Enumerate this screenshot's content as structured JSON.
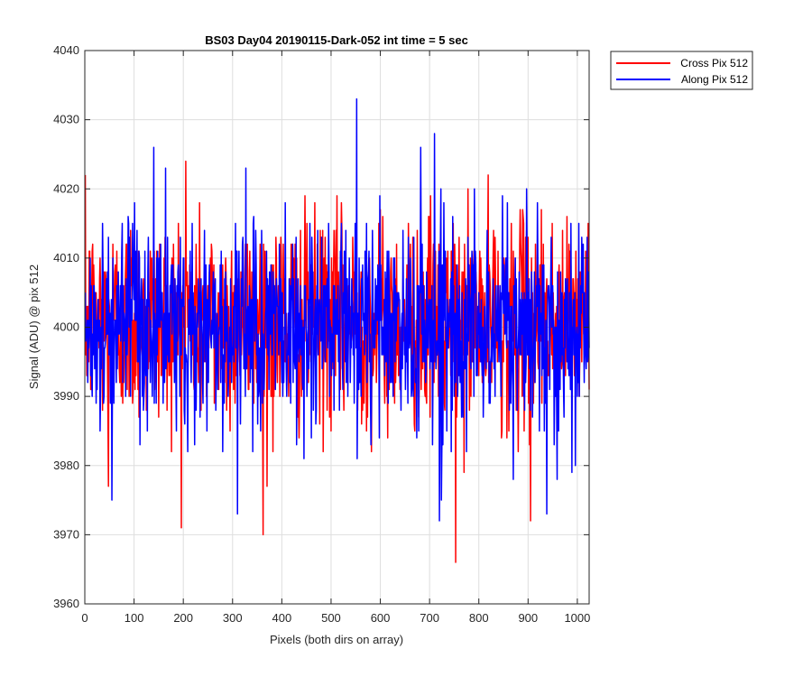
{
  "chart_data": {
    "type": "line",
    "title": "BS03 Day04 20190115-Dark-052 int time = 5 sec",
    "xlabel": "Pixels (both dirs on array)",
    "ylabel": "Signal (ADU) @ pix 512",
    "xlim": [
      0,
      1024
    ],
    "ylim": [
      3960,
      4040
    ],
    "x_ticks": [
      0,
      100,
      200,
      300,
      400,
      500,
      600,
      700,
      800,
      900,
      1000
    ],
    "y_ticks": [
      3960,
      3970,
      3980,
      3990,
      4000,
      4010,
      4020,
      4030,
      4040
    ],
    "x_tick_labels": [
      "0",
      "100",
      "200",
      "300",
      "400",
      "500",
      "600",
      "700",
      "800",
      "900",
      "1000"
    ],
    "y_tick_labels": [
      "3960",
      "3970",
      "3980",
      "3990",
      "4000",
      "4010",
      "4020",
      "4030",
      "4040"
    ],
    "grid": true,
    "legend_position": "outside-top-right",
    "series": [
      {
        "name": "Cross Pix 512",
        "color": "#ff0000",
        "summary": {
          "mean_approx": 4001,
          "min_approx": 3966,
          "max_approx": 4024
        },
        "extremes": [
          {
            "x": 205,
            "y": 4024
          },
          {
            "x": 753,
            "y": 3966
          },
          {
            "x": 905,
            "y": 3972
          },
          {
            "x": 370,
            "y": 3977
          },
          {
            "x": 48,
            "y": 3977
          }
        ]
      },
      {
        "name": "Along Pix 512",
        "color": "#0000ff",
        "summary": {
          "mean_approx": 4000,
          "min_approx": 3972,
          "max_approx": 4033
        },
        "extremes": [
          {
            "x": 552,
            "y": 4033
          },
          {
            "x": 310,
            "y": 3973
          },
          {
            "x": 720,
            "y": 3972
          },
          {
            "x": 938,
            "y": 3973
          },
          {
            "x": 55,
            "y": 3975
          },
          {
            "x": 140,
            "y": 4026
          },
          {
            "x": 710,
            "y": 4028
          }
        ]
      }
    ]
  }
}
